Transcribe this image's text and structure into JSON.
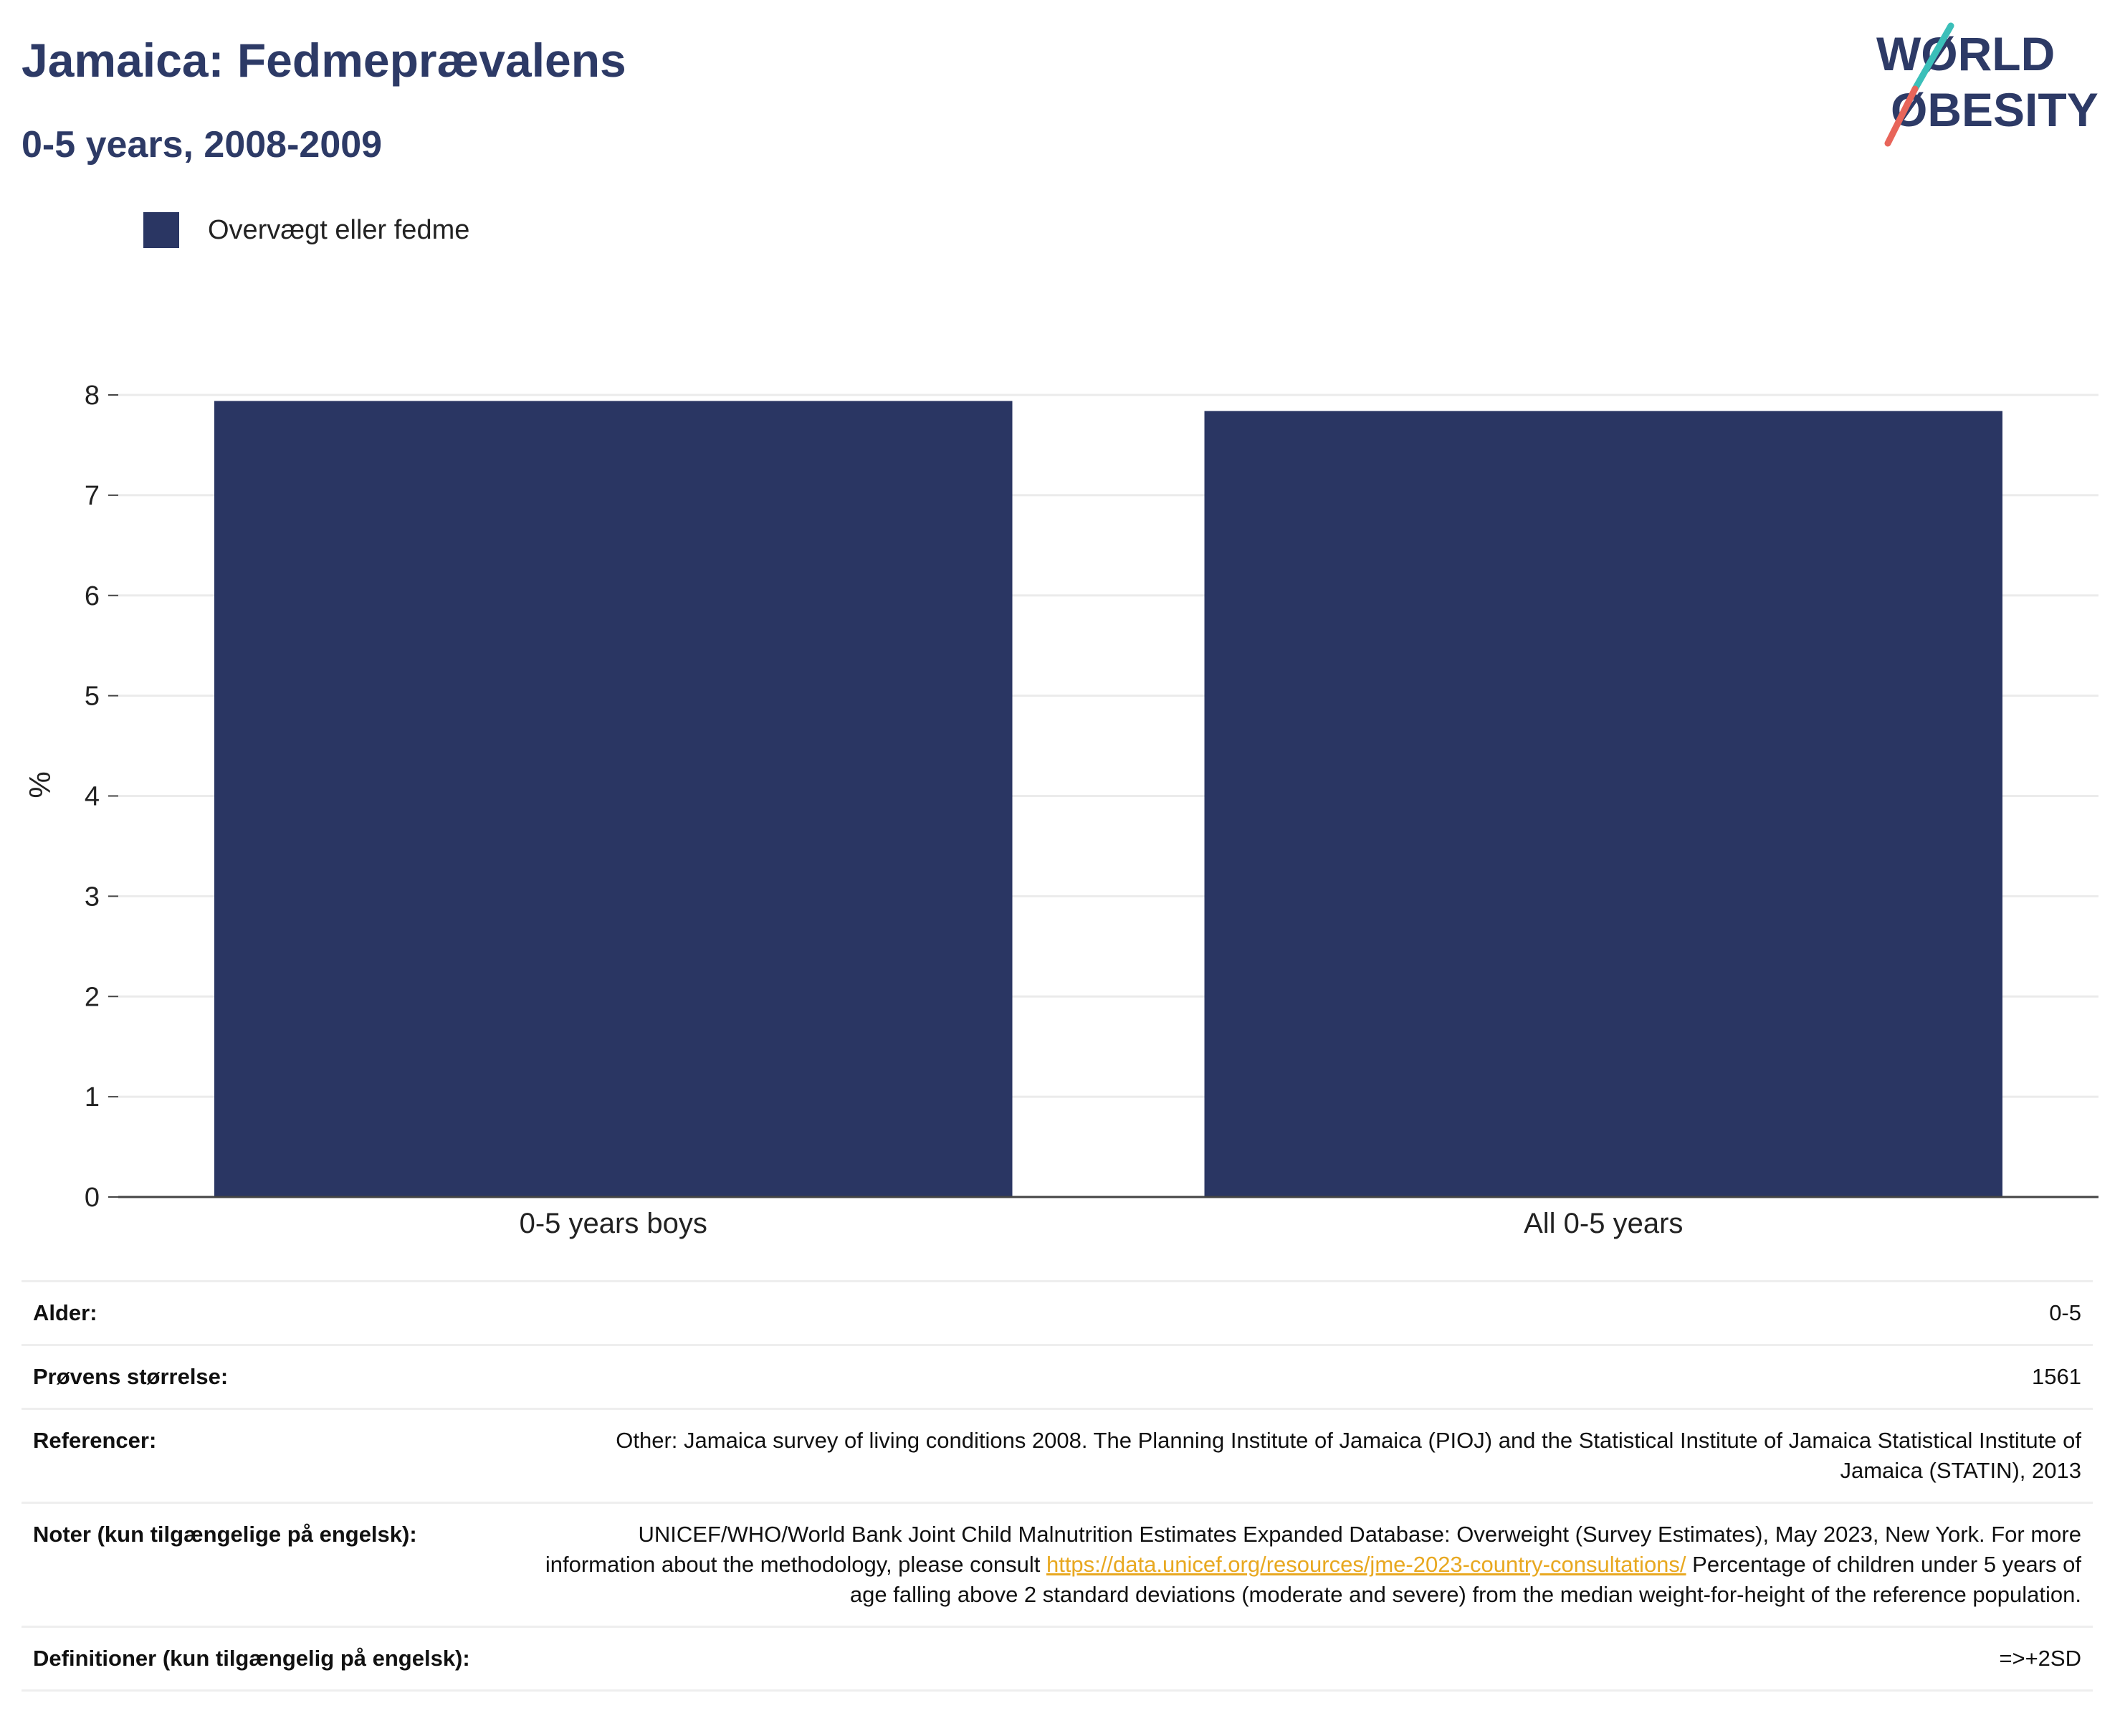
{
  "header": {
    "title": "Jamaica: Fedmeprævalens",
    "subtitle": "0-5 years, 2008-2009"
  },
  "logo": {
    "line1": "WØRLD",
    "line2": "ØBESITY",
    "text_color": "#2d3a66",
    "slash_teal": "#3bbfb9",
    "slash_coral": "#e8655a"
  },
  "legend": {
    "items": [
      {
        "label": "Overvægt eller fedme",
        "color": "#2a3663"
      }
    ]
  },
  "chart_data": {
    "type": "bar",
    "categories": [
      "0-5 years boys",
      "All 0-5 years"
    ],
    "series": [
      {
        "name": "Overvægt eller fedme",
        "values": [
          7.94,
          7.84
        ],
        "color": "#2a3663"
      }
    ],
    "ylabel": "%",
    "ylim": [
      0,
      8
    ],
    "yticks": [
      0,
      1,
      2,
      3,
      4,
      5,
      6,
      7,
      8
    ],
    "grid": true,
    "legend_position": "top-left"
  },
  "meta": {
    "rows": [
      {
        "key": "Alder:",
        "value": "0-5"
      },
      {
        "key": "Prøvens størrelse:",
        "value": "1561"
      },
      {
        "key": "Referencer:",
        "value": "Other: Jamaica survey of living conditions 2008. The Planning Institute of Jamaica (PIOJ) and the Statistical Institute of Jamaica Statistical Institute of Jamaica (STATIN), 2013"
      },
      {
        "key": "Noter (kun tilgængelige på engelsk):",
        "value_before": "UNICEF/WHO/World Bank Joint Child Malnutrition Estimates Expanded Database: Overweight (Survey Estimates), May 2023, New York. For more information about the methodology, please consult ",
        "link": "https://data.unicef.org/resources/jme-2023-country-consultations/",
        "value_after": " Percentage of children under 5 years of age falling above 2 standard deviations (moderate and severe) from the median weight-for-height of the reference population."
      },
      {
        "key": "Definitioner (kun tilgængelig på engelsk):",
        "value": "=>+2SD"
      }
    ]
  }
}
